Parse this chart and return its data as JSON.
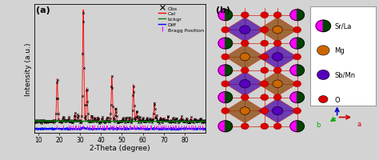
{
  "panel_a_label": "(a)",
  "panel_b_label": "(b)",
  "xlabel": "2-Theta (degree)",
  "ylabel": "Intensity (a.u.)",
  "xlim": [
    8,
    90
  ],
  "xticks": [
    10,
    20,
    30,
    40,
    50,
    60,
    70,
    80
  ],
  "peak_positions": [
    19.0,
    31.5,
    33.2,
    45.2,
    47.0,
    55.5,
    57.0,
    65.5
  ],
  "peak_heights": [
    0.38,
    1.0,
    0.3,
    0.4,
    0.12,
    0.33,
    0.09,
    0.17
  ],
  "extra_peaks": [
    22.0,
    24.5,
    27.5,
    29.0,
    35.5,
    37.0,
    38.5,
    40.5,
    43.0,
    44.5,
    50.5,
    52.0,
    53.5,
    58.5,
    60.0,
    62.0,
    63.5,
    66.5,
    68.5,
    70.0,
    72.0,
    74.5,
    76.0,
    78.5,
    81.0,
    83.0,
    85.0,
    87.5
  ],
  "extra_heights": [
    0.04,
    0.03,
    0.07,
    0.05,
    0.05,
    0.04,
    0.04,
    0.03,
    0.04,
    0.03,
    0.03,
    0.03,
    0.03,
    0.04,
    0.03,
    0.03,
    0.03,
    0.05,
    0.04,
    0.03,
    0.04,
    0.03,
    0.03,
    0.04,
    0.03,
    0.03,
    0.03,
    0.03
  ],
  "bg_color": "#d3d3d3",
  "plot_bg": "#d3d3d3",
  "sbmn_oct_color": "#4400aa",
  "mg_oct_color": "#8B4000",
  "bond_color": "#cc2200",
  "srla_left": "#ff00ff",
  "srla_right": "#004400",
  "mg_atom": "#cc6600",
  "sbmn_atom": "#5500bb",
  "o_atom": "#dd0000",
  "legend_items_b": [
    "Sr/La",
    "Mg",
    "Sb/Mn",
    "O"
  ],
  "arrow_blue": "#0000cc",
  "arrow_red": "#cc0000",
  "arrow_green": "#00aa00"
}
